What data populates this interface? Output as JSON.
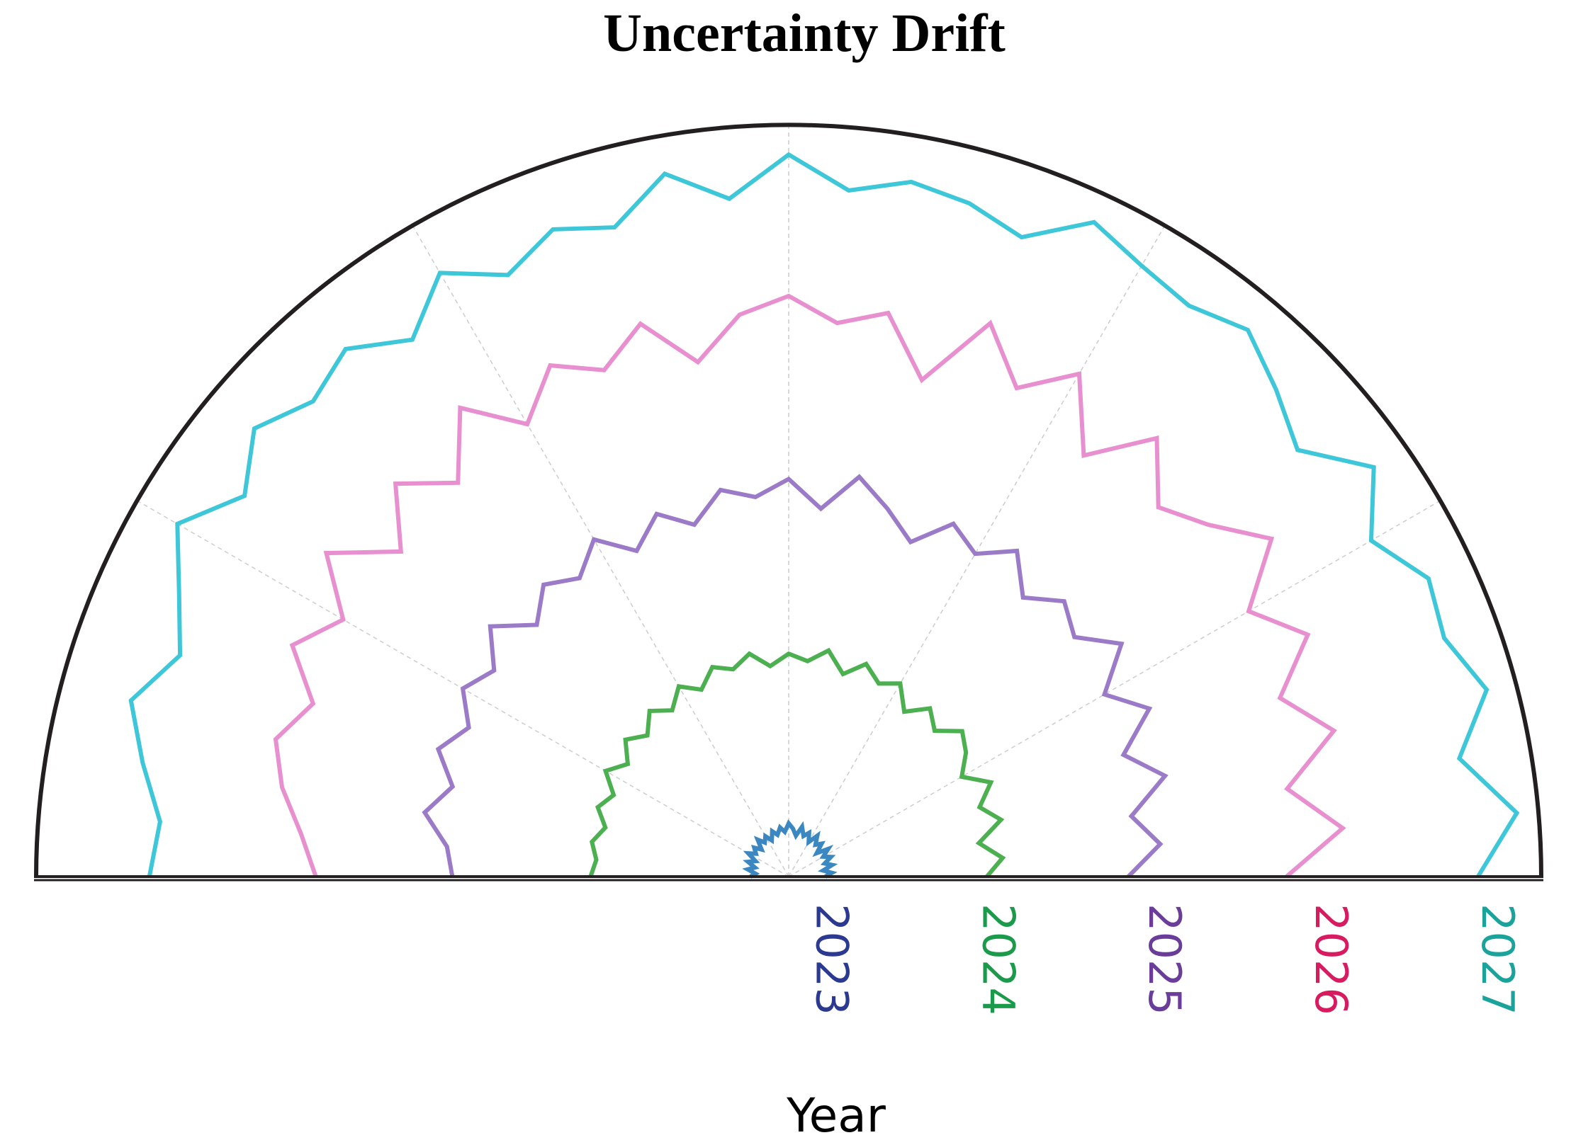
{
  "chart_data": {
    "type": "polar",
    "title": "Uncertainty Drift",
    "r_label": "Year",
    "thetalim": [
      0,
      180
    ],
    "thetaticks": [
      30,
      60,
      90,
      120,
      150
    ],
    "grid": true,
    "rlim": [
      2022.76,
      2027.28
    ],
    "rticks": [
      2023,
      2024,
      2025,
      2026,
      2027
    ],
    "rtick_colors": [
      "#2b3990",
      "#1a9a4a",
      "#6a3d9a",
      "#d81b60",
      "#1aa39a"
    ],
    "theta": [
      0,
      5,
      10,
      15,
      20,
      25,
      30,
      35,
      40,
      45,
      50,
      55,
      60,
      65,
      70,
      75,
      80,
      85,
      90,
      95,
      100,
      105,
      110,
      115,
      120,
      125,
      130,
      135,
      140,
      145,
      150,
      155,
      160,
      165,
      170,
      175,
      180
    ],
    "series": [
      {
        "color": "#3a87c2",
        "values": [
          2022.98,
          2023.02,
          2022.97,
          2023.03,
          2022.99,
          2023.04,
          2023.0,
          2023.05,
          2022.98,
          2023.04,
          2023.01,
          2023.06,
          2023.0,
          2023.05,
          2023.02,
          2023.07,
          2023.01,
          2023.05,
          2023.08,
          2023.03,
          2023.06,
          2023.02,
          2023.05,
          2023.0,
          2023.04,
          2023.01,
          2023.05,
          2022.99,
          2023.03,
          2023.0,
          2023.04,
          2022.98,
          2023.02,
          2022.97,
          2023.01,
          2022.96,
          2022.99
        ]
      },
      {
        "color": "#4caf50",
        "values": [
          2023.95,
          2024.05,
          2023.92,
          2024.08,
          2023.98,
          2024.1,
          2023.96,
          2024.06,
          2024.12,
          2024.0,
          2024.08,
          2023.97,
          2024.1,
          2024.04,
          2024.12,
          2024.02,
          2024.14,
          2024.06,
          2024.1,
          2024.03,
          2024.12,
          2024.05,
          2024.1,
          2024.0,
          2024.08,
          2023.98,
          2024.06,
          2023.96,
          2024.04,
          2023.94,
          2024.03,
          2023.92,
          2023.98,
          2023.9,
          2023.96,
          2023.92,
          2023.95
        ]
      },
      {
        "color": "#9b7bc8",
        "values": [
          2024.8,
          2025.0,
          2024.85,
          2025.1,
          2024.9,
          2025.15,
          2024.95,
          2025.2,
          2025.0,
          2025.1,
          2024.95,
          2025.15,
          2025.0,
          2025.1,
          2024.9,
          2025.05,
          2025.2,
          2024.98,
          2025.15,
          2025.05,
          2025.12,
          2024.95,
          2025.08,
          2024.92,
          2025.1,
          2024.95,
          2025.05,
          2024.9,
          2025.1,
          2024.92,
          2025.02,
          2024.88,
          2025.0,
          2024.85,
          2024.98,
          2024.82,
          2024.78
        ]
      },
      {
        "color": "#e88fcf",
        "values": [
          2025.75,
          2026.1,
          2025.8,
          2026.15,
          2025.9,
          2026.2,
          2025.95,
          2026.3,
          2026.05,
          2025.9,
          2026.2,
          2025.85,
          2026.25,
          2026.0,
          2026.3,
          2025.85,
          2026.2,
          2026.1,
          2026.25,
          2026.15,
          2025.9,
          2026.2,
          2026.0,
          2026.15,
          2025.9,
          2026.2,
          2025.85,
          2026.1,
          2025.8,
          2026.15,
          2025.85,
          2026.05,
          2025.8,
          2025.95,
          2025.85,
          2025.7,
          2025.6
        ]
      },
      {
        "color": "#3ec7d8",
        "values": [
          2026.9,
          2027.15,
          2026.85,
          2027.1,
          2026.95,
          2027.0,
          2026.8,
          2027.05,
          2026.75,
          2026.9,
          2027.05,
          2026.95,
          2027.0,
          2027.1,
          2026.85,
          2026.95,
          2027.0,
          2026.9,
          2027.1,
          2026.85,
          2027.05,
          2026.8,
          2026.9,
          2026.75,
          2026.95,
          2026.7,
          2026.9,
          2026.8,
          2026.95,
          2026.75,
          2027.0,
          2026.8,
          2026.65,
          2026.85,
          2026.7,
          2026.55,
          2026.6
        ]
      }
    ]
  }
}
